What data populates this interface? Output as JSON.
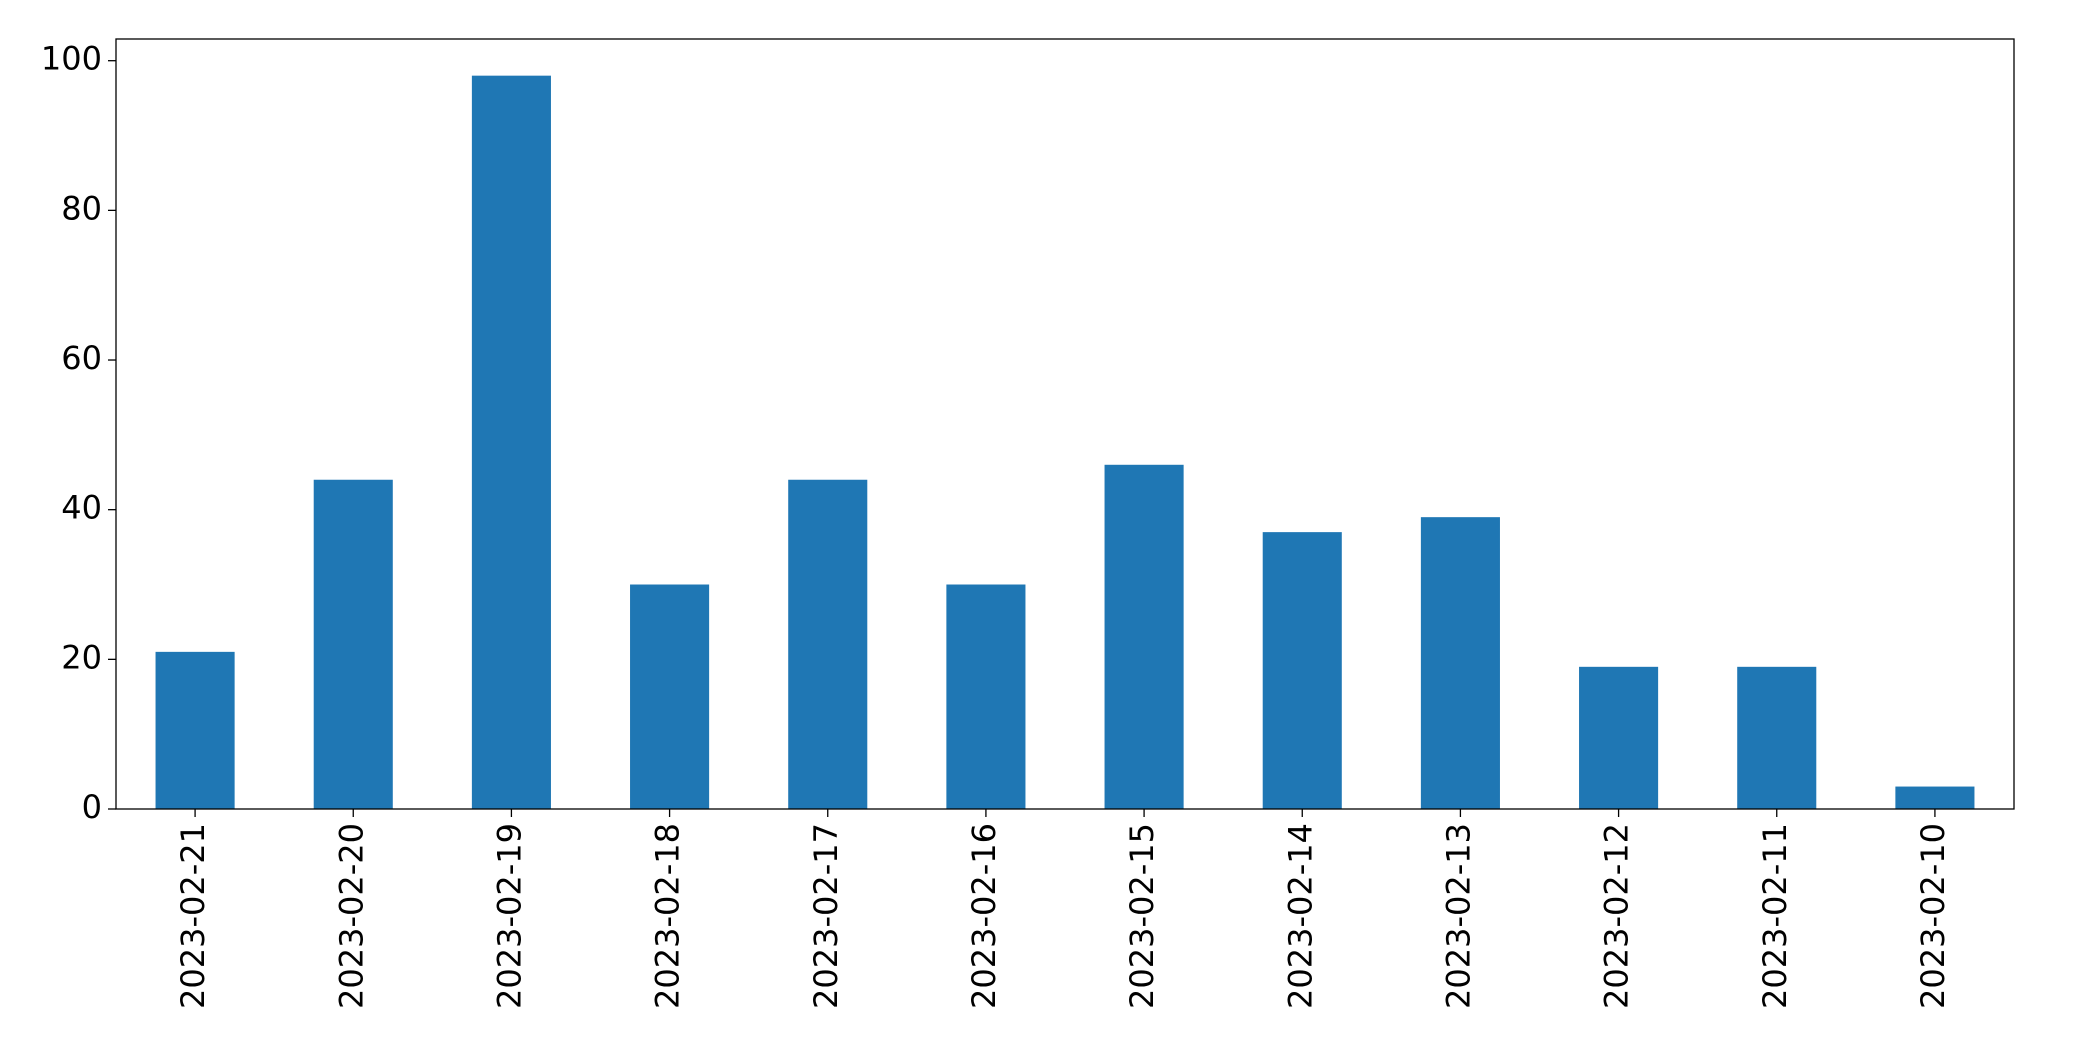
{
  "chart_data": {
    "type": "bar",
    "categories": [
      "2023-02-21",
      "2023-02-20",
      "2023-02-19",
      "2023-02-18",
      "2023-02-17",
      "2023-02-16",
      "2023-02-15",
      "2023-02-14",
      "2023-02-13",
      "2023-02-12",
      "2023-02-11",
      "2023-02-10"
    ],
    "values": [
      21,
      44,
      98,
      30,
      44,
      30,
      46,
      37,
      39,
      19,
      19,
      3
    ],
    "color": "#1f77b4",
    "ylim": [
      0,
      102.9
    ],
    "yticks": [
      0,
      20,
      40,
      60,
      80,
      100
    ],
    "grid": false
  }
}
